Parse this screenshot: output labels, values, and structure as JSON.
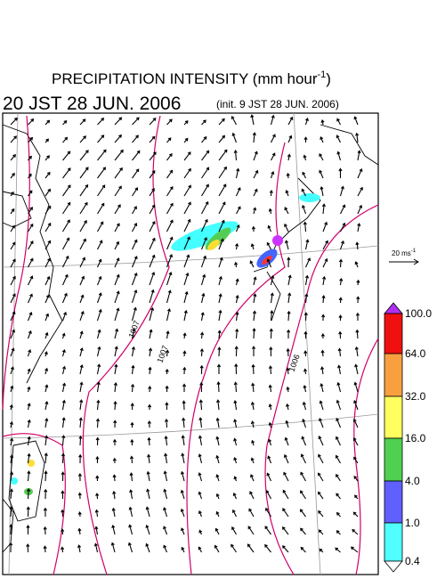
{
  "header": {
    "title": {
      "text": "PRECIPITATION INTENSITY (mm hour",
      "superscript": "-1",
      "close": ")"
    },
    "valid_time": "20 JST 28 JUN. 2006",
    "init_time": "(init. 9 JST 28 JUN. 2006)"
  },
  "wind_reference": {
    "text": "20 ms",
    "superscript": "-1"
  },
  "isobar_labels": [
    "1007",
    "1007",
    "1006"
  ],
  "colorbar": {
    "labels": [
      "100.0",
      "64.0",
      "32.0",
      "16.0",
      "4.0",
      "1.0",
      "0.4"
    ]
  }
}
